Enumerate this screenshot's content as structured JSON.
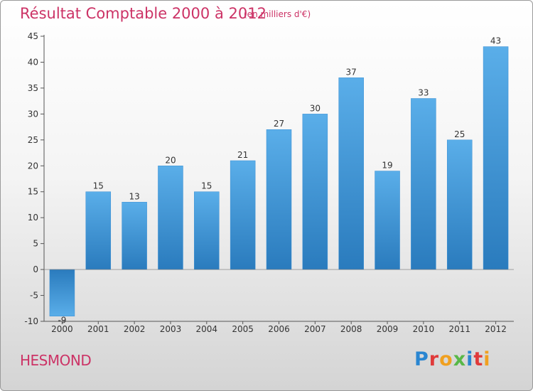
{
  "header": {
    "title": "Résultat Comptable 2000 à 2012",
    "subtitle": "(en milliers d'€)"
  },
  "footer": {
    "place": "HESMOND",
    "brand": "Proxiti"
  },
  "colors": {
    "title": "#cc3366",
    "bar_top": "#5aaee9",
    "bar_bottom": "#2a7bbd",
    "brand": [
      "#2a86d1",
      "#e03a3a",
      "#f0a020",
      "#58b848",
      "#2a86d1",
      "#e03a3a",
      "#f0a020"
    ]
  },
  "chart_data": {
    "type": "bar",
    "title": "Résultat Comptable 2000 à 2012",
    "subtitle": "(en milliers d'€)",
    "xlabel": "",
    "ylabel": "",
    "categories": [
      "2000",
      "2001",
      "2002",
      "2003",
      "2004",
      "2005",
      "2006",
      "2007",
      "2008",
      "2009",
      "2010",
      "2011",
      "2012"
    ],
    "values": [
      -9,
      15,
      13,
      20,
      15,
      21,
      27,
      30,
      37,
      19,
      33,
      25,
      43
    ],
    "ylim": [
      -10,
      45
    ],
    "yticks": [
      -10,
      -5,
      0,
      5,
      10,
      15,
      20,
      25,
      30,
      35,
      40,
      45
    ],
    "grid": false,
    "legend": "none"
  }
}
